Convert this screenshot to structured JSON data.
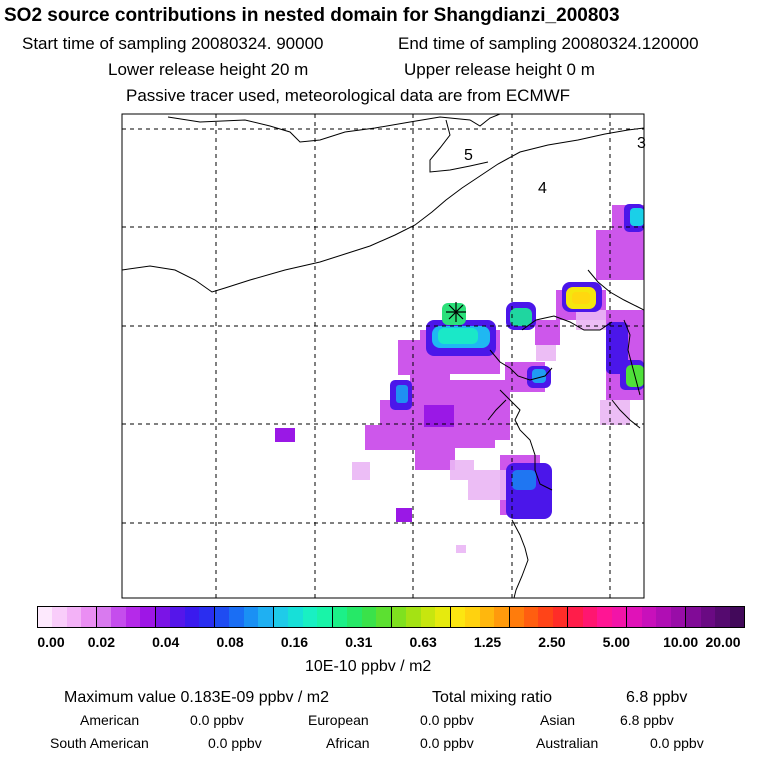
{
  "title": "SO2 source contributions in nested domain for Shangdianzi_200803",
  "sampling": {
    "start_label": "Start time of sampling 20080324. 90000",
    "end_label": "End time of sampling 20080324.120000"
  },
  "release": {
    "lower_label": "Lower release height   20 m",
    "upper_label": "Upper release height    0 m"
  },
  "note": "Passive tracer used, meteorological data are from ECMWF",
  "map": {
    "region_labels": [
      "5",
      "4",
      "3"
    ],
    "station_marker": "asterisk"
  },
  "legend": {
    "tick_labels": [
      "0.00",
      "0.02",
      "0.04",
      "0.08",
      "0.16",
      "0.31",
      "0.63",
      "1.25",
      "2.50",
      "5.00",
      "10.00",
      "20.00"
    ],
    "colors": [
      "#fde9fd",
      "#f9cdfa",
      "#f3b2f7",
      "#ea8ef3",
      "#d97aef",
      "#c54ded",
      "#b52ae9",
      "#9e16e6",
      "#7b14e6",
      "#5516ea",
      "#3a1aee",
      "#2a2ef0",
      "#1f4cf2",
      "#1a6ef4",
      "#1a90f4",
      "#1fb0f2",
      "#1fcbe9",
      "#17e0d8",
      "#19f0c3",
      "#19f4a8",
      "#1cf088",
      "#26e867",
      "#3ae24a",
      "#5ce031",
      "#7fe11f",
      "#a4e214",
      "#c7e60f",
      "#e6ea0e",
      "#fce611",
      "#ffd20f",
      "#ffb70d",
      "#ff9a0c",
      "#ff7c0c",
      "#ff5e10",
      "#ff4418",
      "#ff2d28",
      "#ff1d4a",
      "#ff1670",
      "#ff1594",
      "#f214a8",
      "#e012b8",
      "#c810bb",
      "#b00eb4",
      "#990da8",
      "#810b97",
      "#6a0a83",
      "#550a6f",
      "#42095a"
    ],
    "units": "10E-10 ppbv / m2"
  },
  "stats": {
    "maximum_label": "Maximum value  0.183E-09 ppbv / m2",
    "total_label": "Total mixing ratio",
    "total_value": "6.8 ppbv",
    "regions": [
      {
        "name": "American",
        "value": "0.0 ppbv"
      },
      {
        "name": "European",
        "value": "0.0 ppbv"
      },
      {
        "name": "Asian",
        "value": "6.8 ppbv"
      },
      {
        "name": "South American",
        "value": "0.0 ppbv"
      },
      {
        "name": "African",
        "value": "0.0 ppbv"
      },
      {
        "name": "Australian",
        "value": "0.0 ppbv"
      }
    ]
  }
}
